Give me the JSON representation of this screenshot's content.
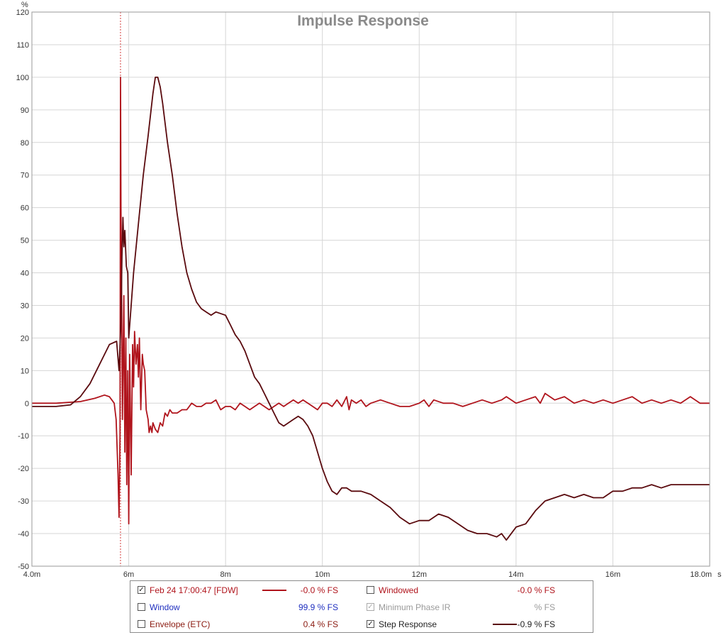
{
  "chart_data": {
    "type": "line",
    "title": "Impulse Response",
    "y_unit_label": "%",
    "x_unit_label": "s",
    "xlim": [
      4.0,
      18.0
    ],
    "ylim": [
      -50,
      120
    ],
    "x_ticks": [
      {
        "value": 4.0,
        "label": "4.0m"
      },
      {
        "value": 6,
        "label": "6m"
      },
      {
        "value": 8,
        "label": "8m"
      },
      {
        "value": 10,
        "label": "10m"
      },
      {
        "value": 12,
        "label": "12m"
      },
      {
        "value": 14,
        "label": "14m"
      },
      {
        "value": 16,
        "label": "16m"
      },
      {
        "value": 18,
        "label": "18.0m"
      }
    ],
    "y_ticks": [
      -50,
      -40,
      -30,
      -20,
      -10,
      0,
      10,
      20,
      30,
      40,
      50,
      60,
      70,
      80,
      90,
      100,
      110,
      120
    ],
    "grid": true,
    "marker_x": 5.83,
    "series": [
      {
        "name": "Feb 24 17:00:47 [FDW]",
        "color": "#b0141c",
        "x": [
          4.0,
          4.5,
          5.0,
          5.3,
          5.5,
          5.6,
          5.65,
          5.7,
          5.74,
          5.78,
          5.8,
          5.82,
          5.83,
          5.84,
          5.85,
          5.87,
          5.9,
          5.92,
          5.94,
          5.96,
          5.98,
          6.0,
          6.02,
          6.05,
          6.08,
          6.1,
          6.12,
          6.15,
          6.18,
          6.2,
          6.22,
          6.25,
          6.28,
          6.3,
          6.33,
          6.36,
          6.4,
          6.42,
          6.45,
          6.48,
          6.5,
          6.55,
          6.6,
          6.65,
          6.7,
          6.75,
          6.8,
          6.85,
          6.9,
          7.0,
          7.1,
          7.2,
          7.3,
          7.4,
          7.5,
          7.6,
          7.7,
          7.8,
          7.9,
          8.0,
          8.1,
          8.2,
          8.3,
          8.4,
          8.5,
          8.6,
          8.7,
          8.8,
          8.9,
          9.0,
          9.1,
          9.2,
          9.3,
          9.4,
          9.5,
          9.6,
          9.7,
          9.8,
          9.9,
          10.0,
          10.1,
          10.2,
          10.3,
          10.4,
          10.5,
          10.55,
          10.6,
          10.7,
          10.8,
          10.9,
          11.0,
          11.2,
          11.4,
          11.6,
          11.8,
          12.0,
          12.1,
          12.2,
          12.3,
          12.5,
          12.7,
          12.9,
          13.1,
          13.3,
          13.5,
          13.7,
          13.8,
          14.0,
          14.2,
          14.4,
          14.5,
          14.6,
          14.8,
          15.0,
          15.2,
          15.4,
          15.6,
          15.8,
          16.0,
          16.2,
          16.4,
          16.6,
          16.8,
          17.0,
          17.2,
          17.4,
          17.6,
          17.8,
          18.0
        ],
        "y": [
          0,
          0,
          0.5,
          1.5,
          2.5,
          2,
          1,
          0,
          -5,
          -22,
          -35,
          -10,
          100,
          60,
          40,
          -5,
          33,
          -15,
          20,
          -25,
          10,
          -37,
          15,
          -22,
          18,
          5,
          22,
          12,
          18,
          8,
          20,
          -2,
          15,
          12,
          10,
          -2,
          -5,
          -9,
          -7,
          -9,
          -6,
          -8,
          -9,
          -6,
          -7,
          -3,
          -4,
          -2,
          -3,
          -3,
          -2,
          -2,
          0,
          -1,
          -1,
          0,
          0,
          1,
          -2,
          -1,
          -1,
          -2,
          0,
          -1,
          -2,
          -1,
          0,
          -1,
          -2,
          -1,
          0,
          -1,
          0,
          1,
          0,
          1,
          0,
          -1,
          -2,
          0,
          0,
          -1,
          1,
          -1,
          2,
          -2,
          1,
          0,
          1,
          -1,
          0,
          1,
          0,
          -1,
          -1,
          0,
          1,
          -1,
          1,
          0,
          0,
          -1,
          0,
          1,
          0,
          1,
          2,
          0,
          1,
          2,
          0,
          3,
          1,
          2,
          0,
          1,
          0,
          1,
          0,
          1,
          2,
          0,
          1,
          0,
          1,
          0,
          2,
          0,
          0
        ]
      },
      {
        "name": "Step Response",
        "color": "#5a0a0e",
        "x": [
          4.0,
          4.5,
          4.8,
          5.0,
          5.2,
          5.4,
          5.6,
          5.75,
          5.8,
          5.84,
          5.86,
          5.88,
          5.9,
          5.92,
          5.95,
          5.98,
          6.0,
          6.05,
          6.1,
          6.2,
          6.3,
          6.4,
          6.5,
          6.55,
          6.6,
          6.65,
          6.7,
          6.8,
          6.9,
          7.0,
          7.1,
          7.2,
          7.3,
          7.4,
          7.5,
          7.6,
          7.7,
          7.8,
          8.0,
          8.1,
          8.2,
          8.3,
          8.4,
          8.5,
          8.6,
          8.7,
          8.8,
          8.9,
          9.0,
          9.1,
          9.2,
          9.3,
          9.4,
          9.5,
          9.6,
          9.7,
          9.8,
          9.9,
          10.0,
          10.1,
          10.2,
          10.3,
          10.4,
          10.5,
          10.6,
          10.8,
          11.0,
          11.2,
          11.4,
          11.6,
          11.8,
          12.0,
          12.2,
          12.4,
          12.6,
          12.8,
          13.0,
          13.2,
          13.4,
          13.6,
          13.7,
          13.8,
          14.0,
          14.2,
          14.4,
          14.6,
          14.8,
          15.0,
          15.2,
          15.4,
          15.6,
          15.8,
          16.0,
          16.2,
          16.4,
          16.6,
          16.8,
          17.0,
          17.2,
          17.4,
          17.6,
          17.8,
          18.0
        ],
        "y": [
          -1,
          -1,
          -0.5,
          2,
          6,
          12,
          18,
          19,
          10,
          25,
          45,
          57,
          48,
          53,
          42,
          40,
          20,
          30,
          40,
          55,
          70,
          82,
          95,
          100,
          100,
          97,
          92,
          80,
          70,
          58,
          48,
          40,
          35,
          31,
          29,
          28,
          27,
          28,
          27,
          24,
          21,
          19,
          16,
          12,
          8,
          6,
          3,
          0,
          -3,
          -6,
          -7,
          -6,
          -5,
          -4,
          -5,
          -7,
          -10,
          -15,
          -20,
          -24,
          -27,
          -28,
          -26,
          -26,
          -27,
          -27,
          -28,
          -30,
          -32,
          -35,
          -37,
          -36,
          -36,
          -34,
          -35,
          -37,
          -39,
          -40,
          -40,
          -41,
          -40,
          -42,
          -38,
          -37,
          -33,
          -30,
          -29,
          -28,
          -29,
          -28,
          -29,
          -29,
          -27,
          -27,
          -26,
          -26,
          -25,
          -26,
          -25,
          -25,
          -25,
          -25,
          -25
        ]
      }
    ]
  },
  "legend": {
    "rows": [
      {
        "left": {
          "checked": true,
          "label": "Feb 24 17:00:47 [FDW]",
          "label_color": "#b0141c",
          "line_color": "#b0141c",
          "value": "-0.0 % FS",
          "value_color": "#b0141c"
        },
        "right": {
          "checked": false,
          "label": "Windowed",
          "label_color": "#b0141c",
          "line_color": "",
          "value": "-0.0 % FS",
          "value_color": "#b0141c"
        }
      },
      {
        "left": {
          "checked": false,
          "label": "Window",
          "label_color": "#1f2fbf",
          "line_color": "",
          "value": "99.9 % FS",
          "value_color": "#1f2fbf"
        },
        "right": {
          "checked": true,
          "disabled": true,
          "label": "Minimum Phase IR",
          "label_color": "#9a9a9a",
          "line_color": "",
          "value": "% FS",
          "value_color": "#9a9a9a"
        }
      },
      {
        "left": {
          "checked": false,
          "label": "Envelope (ETC)",
          "label_color": "#8a1a10",
          "line_color": "",
          "value": "0.4 % FS",
          "value_color": "#8a1a10"
        },
        "right": {
          "checked": true,
          "label": "Step Response",
          "label_color": "#222222",
          "line_color": "#5a0a0e",
          "value": "-0.9 % FS",
          "value_color": "#222222"
        }
      }
    ]
  }
}
